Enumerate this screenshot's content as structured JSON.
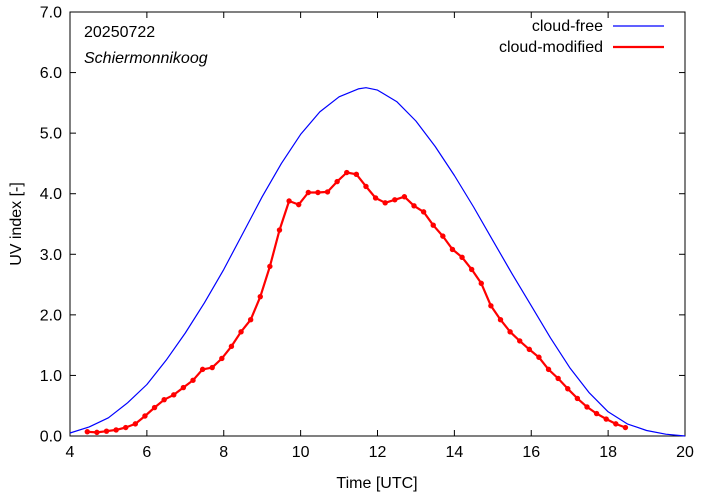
{
  "chart_data": {
    "type": "line",
    "xlabel": "Time  [UTC]",
    "ylabel": "UV index  [-]",
    "xlim": [
      4,
      20
    ],
    "ylim": [
      0,
      7
    ],
    "x_ticks": [
      4,
      6,
      8,
      10,
      12,
      14,
      16,
      18,
      20
    ],
    "x_tick_labels": [
      "4",
      "6",
      "8",
      "10",
      "12",
      "14",
      "16",
      "18",
      "20"
    ],
    "y_ticks": [
      0,
      1,
      2,
      3,
      4,
      5,
      6,
      7
    ],
    "y_tick_labels": [
      "0.0",
      "1.0",
      "2.0",
      "3.0",
      "4.0",
      "5.0",
      "6.0",
      "7.0"
    ],
    "annotations": [
      "20250722",
      "Schiermonnikoog"
    ],
    "legend_position": "top-right",
    "grid": false,
    "series": [
      {
        "name": "cloud-free",
        "color": "#0000ff",
        "markers": false,
        "x": [
          4.0,
          4.5,
          5.0,
          5.5,
          6.0,
          6.5,
          7.0,
          7.5,
          8.0,
          8.5,
          9.0,
          9.5,
          10.0,
          10.5,
          11.0,
          11.5,
          11.7,
          12.0,
          12.5,
          13.0,
          13.5,
          14.0,
          14.5,
          15.0,
          15.5,
          16.0,
          16.5,
          17.0,
          17.5,
          18.0,
          18.5,
          19.0,
          19.5,
          20.0
        ],
        "y": [
          0.05,
          0.15,
          0.3,
          0.55,
          0.85,
          1.25,
          1.7,
          2.2,
          2.75,
          3.35,
          3.95,
          4.5,
          4.98,
          5.35,
          5.6,
          5.73,
          5.75,
          5.71,
          5.52,
          5.2,
          4.78,
          4.3,
          3.78,
          3.23,
          2.68,
          2.15,
          1.62,
          1.13,
          0.72,
          0.4,
          0.2,
          0.09,
          0.03,
          0.0
        ]
      },
      {
        "name": "cloud-modified",
        "color": "#ff0000",
        "markers": true,
        "x": [
          4.45,
          4.7,
          4.95,
          5.2,
          5.45,
          5.7,
          5.95,
          6.2,
          6.45,
          6.7,
          6.95,
          7.2,
          7.45,
          7.7,
          7.95,
          8.2,
          8.45,
          8.7,
          8.95,
          9.2,
          9.45,
          9.7,
          9.95,
          10.2,
          10.45,
          10.7,
          10.95,
          11.2,
          11.45,
          11.7,
          11.95,
          12.2,
          12.45,
          12.7,
          12.95,
          13.2,
          13.45,
          13.7,
          13.95,
          14.2,
          14.45,
          14.7,
          14.95,
          15.2,
          15.45,
          15.7,
          15.95,
          16.2,
          16.45,
          16.7,
          16.95,
          17.2,
          17.45,
          17.7,
          17.95,
          18.2,
          18.45
        ],
        "y": [
          0.07,
          0.06,
          0.08,
          0.1,
          0.14,
          0.2,
          0.33,
          0.47,
          0.6,
          0.68,
          0.8,
          0.92,
          1.1,
          1.13,
          1.28,
          1.48,
          1.72,
          1.92,
          2.3,
          2.8,
          3.4,
          3.88,
          3.82,
          4.02,
          4.02,
          4.03,
          4.2,
          4.35,
          4.32,
          4.12,
          3.93,
          3.85,
          3.9,
          3.95,
          3.8,
          3.7,
          3.48,
          3.3,
          3.08,
          2.95,
          2.75,
          2.52,
          2.15,
          1.92,
          1.72,
          1.57,
          1.43,
          1.3,
          1.1,
          0.95,
          0.78,
          0.62,
          0.48,
          0.37,
          0.28,
          0.2,
          0.14
        ]
      }
    ]
  }
}
